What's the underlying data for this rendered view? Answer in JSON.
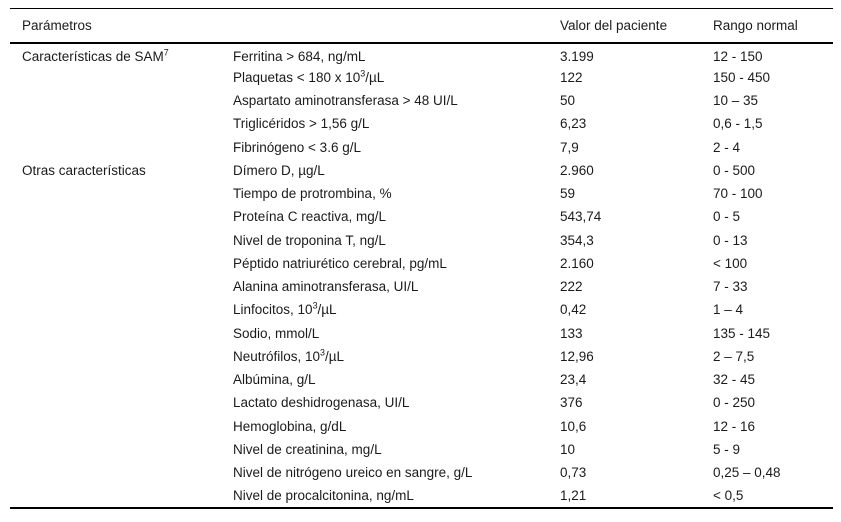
{
  "colors": {
    "background": "#ffffff",
    "text": "#1b1b1b",
    "border": "#000000"
  },
  "table": {
    "headers": {
      "parameters": "Parámetros",
      "parameter_detail": "",
      "patient_value": "Valor del paciente",
      "normal_range": "Rango normal"
    },
    "rows": [
      {
        "group": "Características de SAM^{7}",
        "param": "Ferritina > 684, ng/mL",
        "value": "3.199",
        "range": "12 - 150"
      },
      {
        "group": "",
        "param": "Plaquetas < 180 x 10^{3}/µL",
        "value": "122",
        "range": "150 - 450"
      },
      {
        "group": "",
        "param": "Aspartato aminotransferasa > 48 UI/L",
        "value": "50",
        "range": "10 – 35"
      },
      {
        "group": "",
        "param": "Triglicéridos > 1,56 g/L",
        "value": "6,23",
        "range": "0,6 - 1,5"
      },
      {
        "group": "",
        "param": "Fibrinógeno < 3.6 g/L",
        "value": "7,9",
        "range": "2 - 4"
      },
      {
        "group": "Otras características",
        "param": "Dímero D, µg/L",
        "value": "2.960",
        "range": "0 - 500"
      },
      {
        "group": "",
        "param": "Tiempo de protrombina, %",
        "value": "59",
        "range": "70 - 100"
      },
      {
        "group": "",
        "param": "Proteína C reactiva, mg/L",
        "value": "543,74",
        "range": "0 - 5"
      },
      {
        "group": "",
        "param": "Nivel de troponina T, ng/L",
        "value": "354,3",
        "range": "0 - 13"
      },
      {
        "group": "",
        "param": "Péptido natriurético cerebral, pg/mL",
        "value": "2.160",
        "range": "< 100"
      },
      {
        "group": "",
        "param": "Alanina aminotransferasa, UI/L",
        "value": "222",
        "range": "7 - 33"
      },
      {
        "group": "",
        "param": "Linfocitos, 10^{3}/µL",
        "value": "0,42",
        "range": "1 – 4"
      },
      {
        "group": "",
        "param": "Sodio, mmol/L",
        "value": "133",
        "range": "135 - 145"
      },
      {
        "group": "",
        "param": "Neutrófilos, 10^{3}/µL",
        "value": "12,96",
        "range": "2 – 7,5"
      },
      {
        "group": "",
        "param": "Albúmina, g/L",
        "value": "23,4",
        "range": "32 - 45"
      },
      {
        "group": "",
        "param": "Lactato deshidrogenasa, UI/L",
        "value": "376",
        "range": "0 - 250"
      },
      {
        "group": "",
        "param": "Hemoglobina, g/dL",
        "value": "10,6",
        "range": "12 - 16"
      },
      {
        "group": "",
        "param": "Nivel de creatinina, mg/L",
        "value": "10",
        "range": "5 - 9"
      },
      {
        "group": "",
        "param": "Nivel de nitrógeno ureico en sangre, g/L",
        "value": "0,73",
        "range": "0,25 – 0,48"
      },
      {
        "group": "",
        "param": "Nivel de procalcitonina, ng/mL",
        "value": "1,21",
        "range": "< 0,5"
      }
    ]
  }
}
